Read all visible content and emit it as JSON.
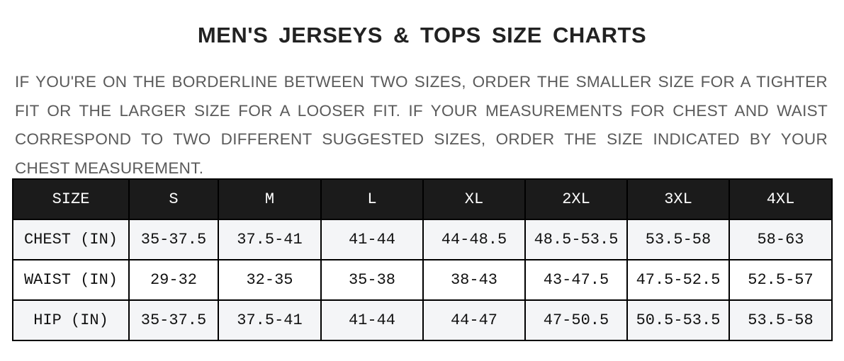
{
  "title": "MEN'S JERSEYS & TOPS SIZE CHARTS",
  "description": "IF YOU'RE ON THE BORDERLINE BETWEEN TWO SIZES, ORDER THE SMALLER SIZE FOR A TIGHTER FIT OR THE LARGER SIZE FOR A LOOSER FIT. IF YOUR MEASUREMENTS FOR CHEST AND WAIST CORRESPOND TO TWO DIFFERENT SUGGESTED SIZES, ORDER THE SIZE INDICATED BY YOUR CHEST MEASUREMENT.",
  "table": {
    "header": [
      "SIZE",
      "S",
      "M",
      "L",
      "XL",
      "2XL",
      "3XL",
      "4XL"
    ],
    "rows": [
      [
        "CHEST (IN)",
        "35-37.5",
        "37.5-41",
        "41-44",
        "44-48.5",
        "48.5-53.5",
        "53.5-58",
        "58-63"
      ],
      [
        "WAIST (IN)",
        "29-32",
        "32-35",
        "35-38",
        "38-43",
        "43-47.5",
        "47.5-52.5",
        "52.5-57"
      ],
      [
        "HIP (IN)",
        "35-37.5",
        "37.5-41",
        "41-44",
        "44-47",
        "47-50.5",
        "50.5-53.5",
        "53.5-58"
      ]
    ]
  },
  "colors": {
    "header_bg": "#1b1b1b",
    "alt_row_bg": "#f4f5f7",
    "text_gray": "#5a5a5a"
  }
}
